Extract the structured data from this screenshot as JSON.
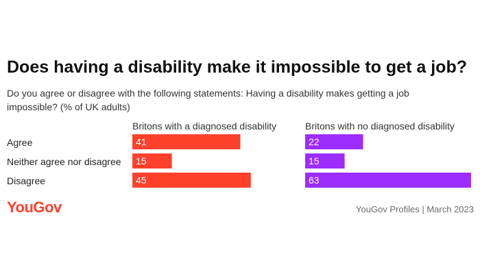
{
  "title": "Does having a disability make it impossible to get a job?",
  "subtitle": "Do you agree or disagree with the following statements: Having a disability makes getting a job impossible? (% of UK adults)",
  "brand": {
    "logo_text": "YouGov",
    "color": "#ff412c"
  },
  "source": "YouGov Profiles | March 2023",
  "chart_data": {
    "type": "bar",
    "orientation": "horizontal",
    "categories": [
      "Agree",
      "Neither agree nor disagree",
      "Disagree"
    ],
    "series": [
      {
        "name": "Britons with a diagnosed disability",
        "values": [
          41,
          15,
          45
        ],
        "color": "#ff412c"
      },
      {
        "name": "Britons with no diagnosed disability",
        "values": [
          22,
          15,
          63
        ],
        "color": "#9d2cff"
      }
    ],
    "xlim": [
      0,
      65
    ],
    "data_labels": true,
    "grid": false
  }
}
